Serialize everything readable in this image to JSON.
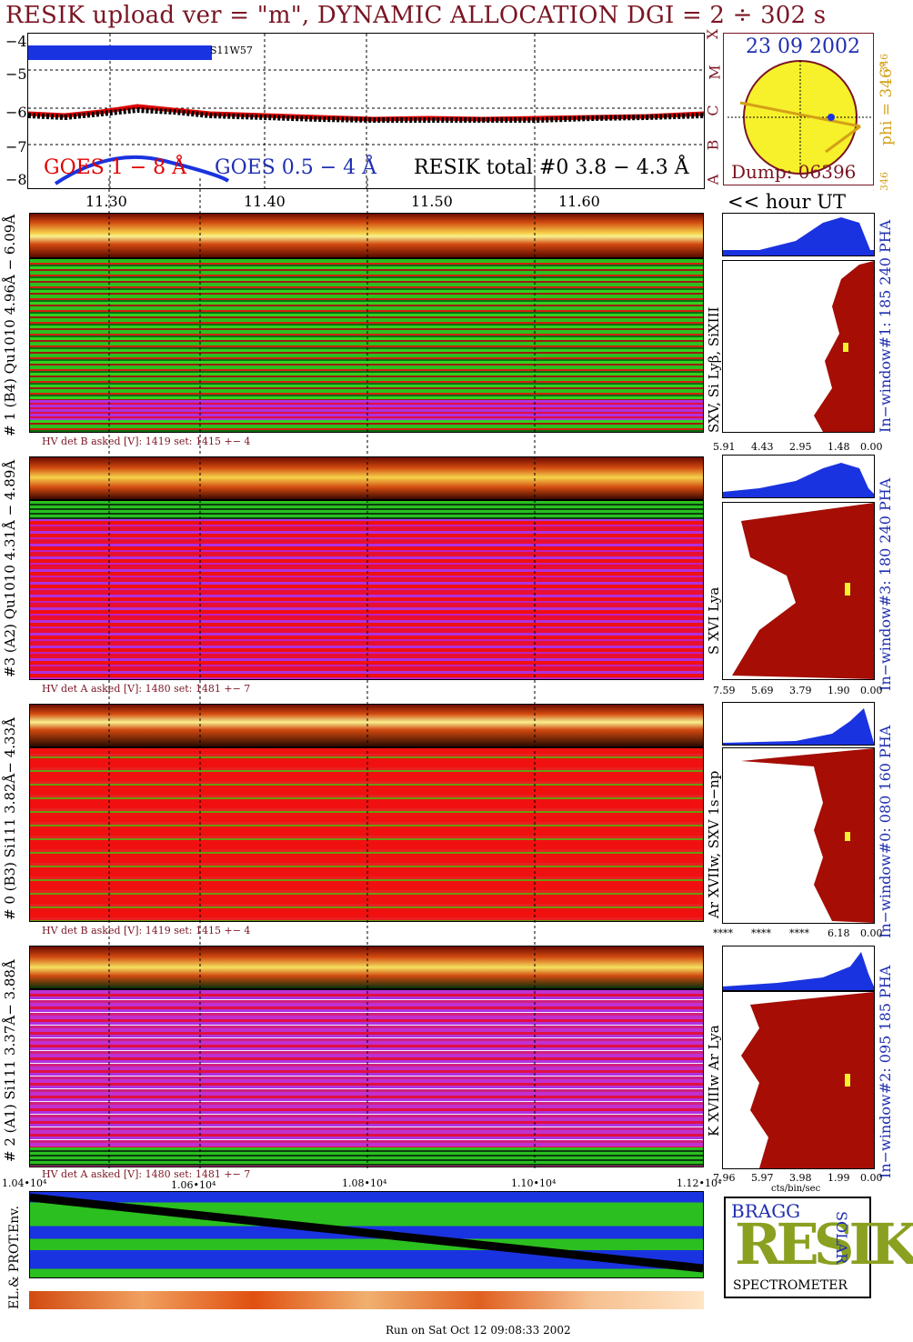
{
  "title": "RESIK upload ver = \"m\", DYNAMIC ALLOCATION  DGI =   2 ÷ 302 s",
  "top_plot": {
    "y_ticks": [
      "−4",
      "−5",
      "−6",
      "−7",
      "−8"
    ],
    "flag_label": "S11W57",
    "legend_goes_1_8": "GOES 1 − 8 Å",
    "legend_goes_05_4": "GOES 0.5 − 4 Å",
    "legend_resik_total": "RESIK total #0  3.8 − 4.3 Å",
    "class_letters": [
      "X",
      "M",
      "C",
      "B",
      "A"
    ],
    "x_ticks": [
      "11.30",
      "11.40",
      "11.50",
      "11.60"
    ],
    "hour_label": "<< hour UT"
  },
  "sun_box": {
    "date": "23 09 2002",
    "dump": "Dump: 06396",
    "phi_label": "phi = 346°",
    "phi_sup": "346",
    "phi_small": "346"
  },
  "channels": [
    {
      "ylabel": "# 1 (B4) Qu1010 4.96Å − 6.09Å",
      "hv_text": "HV det B asked [V]:  1419 set:  1415 +−    4",
      "lines_label": "SXV, Si Lyβ, SiXIII",
      "window_label": "In−window#1:  185 240 PHA",
      "x_ticks": [
        "5.91",
        "4.43",
        "2.95",
        "1.48",
        "0.00"
      ]
    },
    {
      "ylabel": "#3 (A2) Qu1010  4.31Å − 4.89Å",
      "hv_text": "HV det A asked [V]:  1480 set:  1481 +−    7",
      "lines_label": "S XVI Lya",
      "window_label": "In−window#3:  180 240 PHA",
      "x_ticks": [
        "7.59",
        "5.69",
        "3.79",
        "1.90",
        "0.00"
      ]
    },
    {
      "ylabel": "# 0 (B3) Si111  3.82Å− 4.33Å",
      "hv_text": "HV det B asked [V]:  1419 set:  1415 +−    4",
      "lines_label": "Ar XVIIw, SXV 1s−np",
      "window_label": "In−window#0:  080 160 PHA",
      "x_ticks": [
        "****",
        "****",
        "****",
        "6.18",
        "0.00"
      ]
    },
    {
      "ylabel": "# 2 (A1) Si111  3.37Å− 3.88Å",
      "hv_text": "HV det A asked [V]:  1480 set:  1481 +−    7",
      "lines_label": "K XVIIIw  Ar Lya",
      "window_label": "In−window#2:  095 185 PHA",
      "x_ticks": [
        "7.96",
        "5.97",
        "3.98",
        "1.99",
        "0.00"
      ],
      "x_unit": "cts/bin/sec"
    }
  ],
  "bottom": {
    "x_ticks": [
      "1.04•10⁴",
      "1.06•10⁴",
      "1.08•10⁴",
      "1.10•10⁴",
      "1.12•10⁴"
    ],
    "ylabel": "EL.& PROT.Env."
  },
  "logo": {
    "letters": "RESIK",
    "bragg": "BRAGG",
    "solar": "SOLAR",
    "caption": "SPECTROMETER"
  },
  "footer": "Run on Sat Oct 12 09:08:33 2002",
  "colors": {
    "maroon": "#7a1523",
    "blue": "#1f2fb0",
    "red": "#e00000",
    "gold": "#d4a017",
    "sun_fill": "#f6f12a",
    "spectrum_fill": "#a50d05"
  }
}
